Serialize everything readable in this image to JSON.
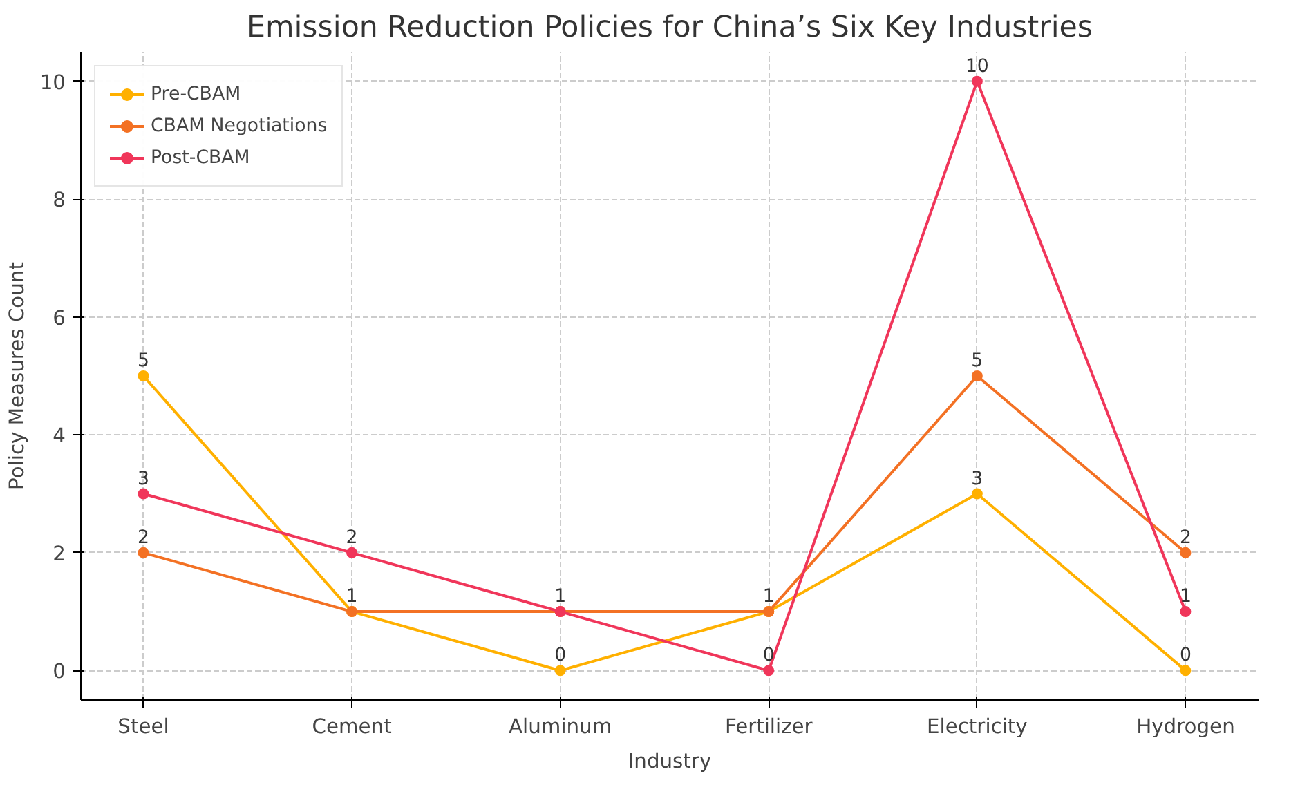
{
  "chart_data": {
    "type": "line",
    "title": "Emission Reduction Policies for China’s Six Key Industries",
    "xlabel": "Industry",
    "ylabel": "Policy Measures Count",
    "categories": [
      "Steel",
      "Cement",
      "Aluminum",
      "Fertilizer",
      "Electricity",
      "Hydrogen"
    ],
    "series": [
      {
        "name": "Pre-CBAM",
        "color": "#ffb000",
        "values": [
          5,
          1,
          0,
          1,
          3,
          0
        ],
        "value_labels": [
          "5",
          "1",
          "0",
          "1",
          "3",
          "0"
        ]
      },
      {
        "name": "CBAM Negotiations",
        "color": "#f37124",
        "values": [
          2,
          1,
          1,
          1,
          5,
          2
        ],
        "value_labels": [
          "2",
          null,
          "1",
          null,
          "5",
          "2"
        ]
      },
      {
        "name": "Post-CBAM",
        "color": "#f0365a",
        "values": [
          3,
          2,
          1,
          0,
          10,
          1
        ],
        "value_labels": [
          "3",
          "2",
          null,
          "0",
          "10",
          "1"
        ]
      }
    ],
    "ylim": [
      -0.5,
      10.5
    ],
    "yticks": [
      0,
      2,
      4,
      6,
      8,
      10
    ],
    "grid": true,
    "legend": "top left",
    "marker": "circle",
    "line_style": "solid"
  }
}
